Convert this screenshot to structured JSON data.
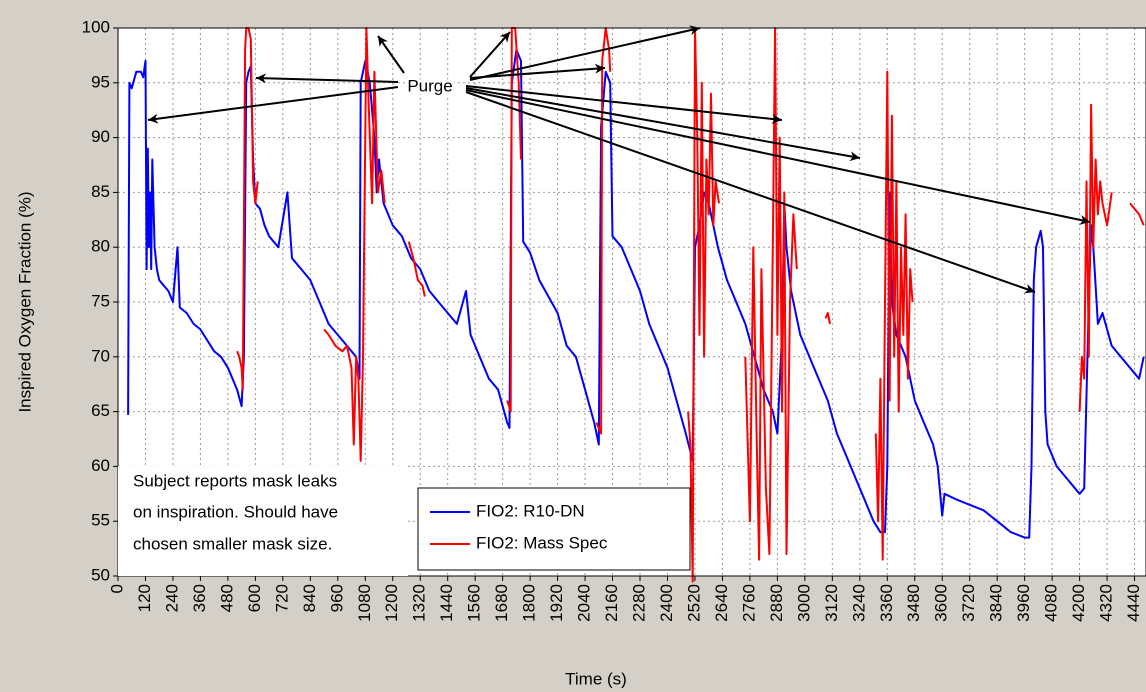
{
  "chart_data": {
    "type": "line",
    "xlabel": "Time (s)",
    "ylabel": "Inspired Oxygen Fraction (%)",
    "xlim": [
      0,
      4490
    ],
    "ylim": [
      50,
      100
    ],
    "xticks": [
      0,
      120,
      240,
      360,
      480,
      600,
      720,
      840,
      960,
      1080,
      1200,
      1320,
      1440,
      1560,
      1680,
      1800,
      1920,
      2040,
      2160,
      2280,
      2400,
      2520,
      2640,
      2760,
      2880,
      3000,
      3120,
      3240,
      3360,
      3480,
      3600,
      3720,
      3840,
      3960,
      4080,
      4200,
      4320,
      4440
    ],
    "yticks": [
      50,
      55,
      60,
      65,
      70,
      75,
      80,
      85,
      90,
      95,
      100
    ],
    "grid": true,
    "legend": "lower center",
    "annotations": {
      "purge": "Purge",
      "note": [
        "Subject reports mask leaks",
        "on inspiration. Should have",
        "chosen smaller mask size."
      ]
    },
    "series": [
      {
        "name": "FIO2: R10-DN",
        "color": "#0000ff",
        "x": [
          44,
          50,
          60,
          80,
          100,
          110,
          120,
          125,
          130,
          135,
          140,
          145,
          150,
          160,
          170,
          180,
          200,
          220,
          240,
          260,
          270,
          300,
          330,
          360,
          390,
          420,
          450,
          480,
          500,
          520,
          540,
          550,
          560,
          570,
          580,
          590,
          600,
          620,
          640,
          660,
          700,
          740,
          760,
          800,
          840,
          880,
          920,
          960,
          1000,
          1040,
          1055,
          1060,
          1070,
          1080,
          1090,
          1100,
          1120,
          1130,
          1140,
          1160,
          1200,
          1240,
          1280,
          1320,
          1360,
          1400,
          1440,
          1480,
          1520,
          1540,
          1580,
          1620,
          1660,
          1700,
          1710,
          1720,
          1740,
          1760,
          1770,
          1800,
          1840,
          1880,
          1920,
          1960,
          2000,
          2040,
          2080,
          2100,
          2110,
          2130,
          2150,
          2160,
          2200,
          2240,
          2280,
          2320,
          2360,
          2400,
          2440,
          2480,
          2510,
          2520,
          2540,
          2560,
          2580,
          2620,
          2660,
          2700,
          2740,
          2780,
          2820,
          2860,
          2880,
          2900,
          2910,
          2920,
          2940,
          2980,
          3020,
          3060,
          3100,
          3140,
          3180,
          3220,
          3260,
          3300,
          3330,
          3350,
          3360,
          3370,
          3380,
          3400,
          3440,
          3480,
          3520,
          3560,
          3580,
          3600,
          3610,
          3660,
          3720,
          3780,
          3840,
          3900,
          3960,
          3980,
          3990,
          4000,
          4010,
          4030,
          4040,
          4050,
          4060,
          4100,
          4140,
          4180,
          4200,
          4220,
          4240,
          4250,
          4260,
          4280,
          4300,
          4340,
          4380,
          4420,
          4460,
          4480
        ],
        "values": [
          64.7,
          95,
          94.5,
          96,
          96,
          95.5,
          97,
          78,
          89,
          80,
          85,
          78,
          88,
          80,
          78,
          77,
          76.5,
          76,
          75,
          80,
          74.5,
          74,
          73,
          72.5,
          71.5,
          70.5,
          70,
          69,
          68,
          67,
          65.5,
          70,
          95,
          96,
          96.5,
          88,
          84,
          83.5,
          82,
          81,
          80,
          85,
          79,
          78,
          77,
          75,
          73,
          72,
          71,
          70,
          68,
          95,
          96,
          97,
          96,
          95,
          90,
          85,
          88,
          84,
          82,
          81,
          79,
          78,
          76,
          75,
          74,
          73,
          76,
          72,
          70,
          68,
          67,
          64,
          63.5,
          95,
          98,
          97,
          80.5,
          79.5,
          77,
          75.5,
          74,
          71,
          70,
          67,
          64,
          62,
          91,
          96,
          95,
          81,
          80,
          78,
          76,
          73,
          71,
          69,
          66,
          63,
          60.5,
          80,
          82,
          85,
          84,
          80,
          77,
          75,
          73,
          70,
          67,
          65,
          63,
          72,
          84,
          80,
          76,
          72,
          70,
          68,
          66,
          63,
          61,
          59,
          57,
          55,
          54,
          54,
          60,
          85,
          75,
          72,
          70,
          66,
          64,
          62,
          60,
          55.5,
          57.5,
          57,
          56.5,
          56,
          55,
          54,
          53.5,
          53.5,
          60,
          77,
          80,
          81.5,
          80,
          65,
          62,
          60,
          59,
          58,
          57.5,
          58,
          75,
          82,
          80,
          73,
          74,
          71,
          70,
          69,
          68,
          70
        ]
      },
      {
        "name": "FIO2: Mass Spec",
        "color": "#ff0000",
        "x": [
          520,
          530,
          540,
          545,
          555,
          560,
          570,
          580,
          590,
          600,
          610,
          null,
          900,
          920,
          950,
          980,
          1000,
          1020,
          1030,
          1040,
          1050,
          1060,
          1070,
          1085,
          1095,
          1110,
          1120,
          1135,
          1150,
          1165,
          null,
          1270,
          1290,
          1310,
          1330,
          1340,
          null,
          1700,
          1715,
          1720,
          1735,
          1750,
          1760,
          null,
          2090,
          2110,
          2115,
          2130,
          2145,
          2150,
          null,
          2490,
          2500,
          2510,
          2520,
          2530,
          2540,
          2550,
          2560,
          2570,
          2580,
          2590,
          2600,
          2610,
          2625,
          null,
          2740,
          2760,
          2775,
          2790,
          2800,
          2810,
          2830,
          2845,
          2860,
          2870,
          2880,
          2890,
          2900,
          2910,
          2920,
          2935,
          2950,
          2965,
          null,
          3090,
          3100,
          3110,
          null,
          3310,
          3320,
          3330,
          3340,
          3350,
          3360,
          3370,
          3380,
          3390,
          3400,
          3410,
          3420,
          3430,
          3440,
          3450,
          3460,
          3470,
          null,
          4200,
          4210,
          4220,
          4230,
          4240,
          4250,
          4260,
          4270,
          4280,
          4290,
          4300,
          4320,
          4340,
          null,
          4420,
          4440,
          4460,
          4480
        ],
        "values": [
          70.5,
          70,
          69,
          67,
          98,
          100,
          100,
          99,
          86,
          84,
          86,
          null,
          72.5,
          72,
          71,
          70.5,
          71,
          69,
          62,
          70,
          68,
          60.5,
          70,
          100,
          93,
          84,
          96,
          85,
          87,
          84,
          null,
          80.5,
          79,
          77,
          76.5,
          75.5,
          null,
          66,
          65,
          100,
          100,
          95,
          88,
          null,
          64,
          63,
          97,
          100,
          98,
          96,
          null,
          65,
          62,
          49.5,
          100,
          90,
          72,
          95,
          70,
          88,
          83,
          94,
          82,
          86,
          84,
          null,
          70,
          55,
          80,
          62,
          51.5,
          78,
          58,
          52,
          80,
          100,
          72,
          90,
          65,
          85,
          52,
          75,
          83,
          78,
          null,
          73.5,
          74,
          73,
          null,
          63,
          55,
          68,
          51.5,
          75,
          96,
          66,
          92,
          70,
          86,
          65,
          80,
          72,
          83,
          68,
          78,
          75,
          null,
          65,
          70,
          68,
          86,
          70,
          93,
          80,
          88,
          83,
          86,
          84,
          82,
          85,
          null,
          84,
          83.5,
          83,
          82
        ]
      }
    ]
  }
}
